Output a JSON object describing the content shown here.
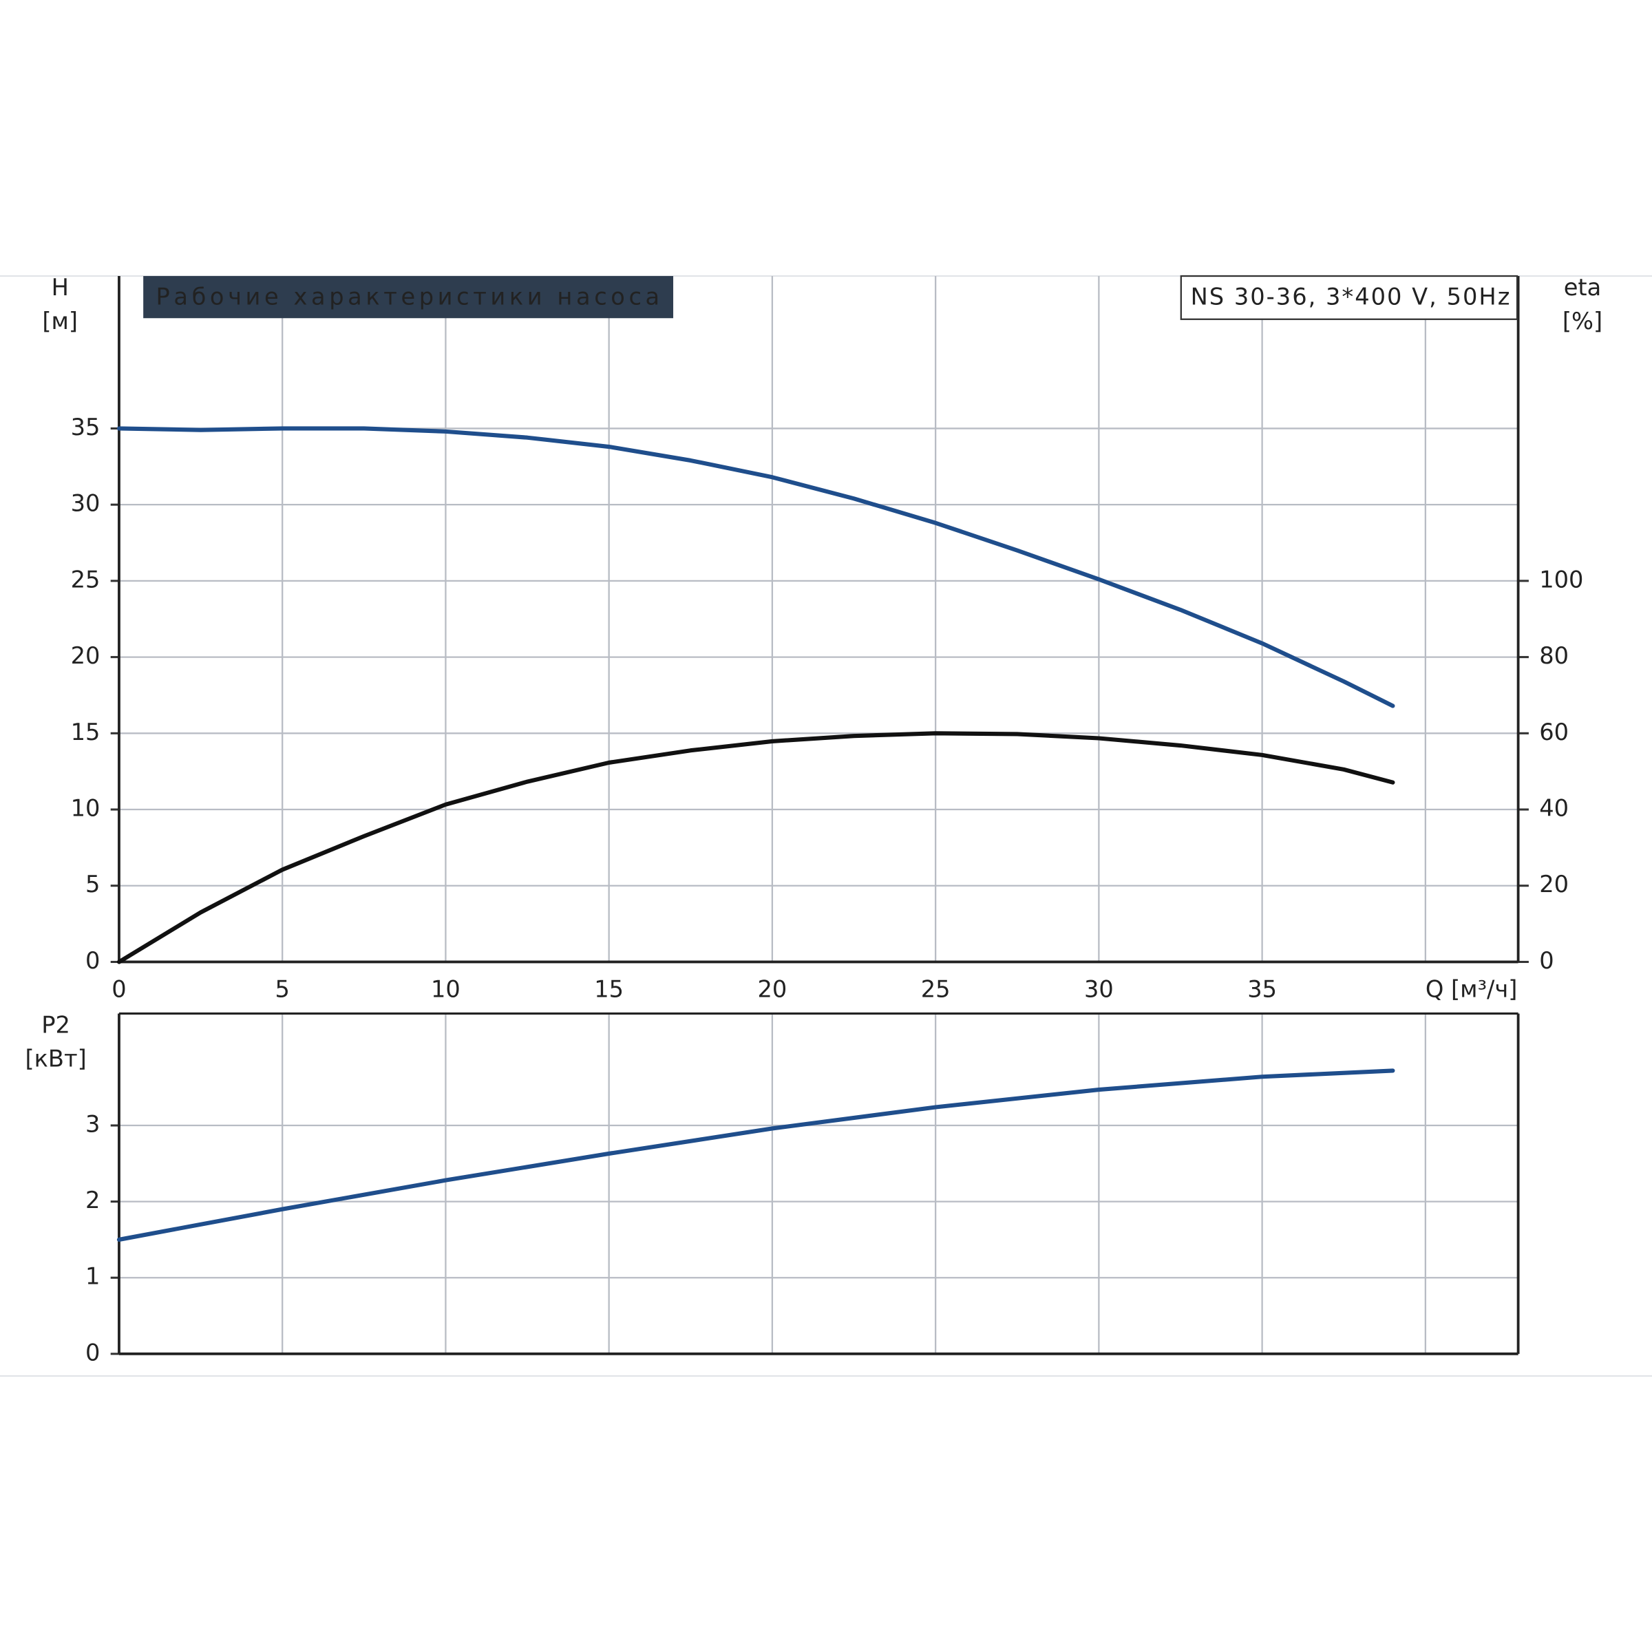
{
  "chart_data": [
    {
      "type": "line",
      "title": "Рабочие характеристики насоса",
      "annotation": "NS 30-36, 3*400 V, 50Hz",
      "ylabel": [
        "H",
        "[м]"
      ],
      "y2label": [
        "eta",
        "[%]"
      ],
      "x": [
        0,
        2.5,
        5,
        7.5,
        10,
        12.5,
        15,
        17.5,
        20,
        22.5,
        25,
        27.5,
        30,
        32.5,
        35,
        37.5,
        39
      ],
      "series": [
        {
          "color": "#1f4e8c",
          "values": [
            35,
            34.9,
            35,
            35,
            34.8,
            34.4,
            33.8,
            32.9,
            31.8,
            30.4,
            28.8,
            27.0,
            25.1,
            23.1,
            20.9,
            18.4,
            16.8
          ]
        },
        {
          "color": "#111111",
          "axis": "y2",
          "values": [
            0,
            13,
            24.2,
            33,
            41.3,
            47.3,
            52.3,
            55.5,
            57.9,
            59.3,
            60,
            59.8,
            58.7,
            56.8,
            54.3,
            50.5,
            47.1
          ]
        }
      ],
      "xlim": [
        0,
        42.84
      ],
      "xticks": [
        0,
        5,
        10,
        15,
        20,
        25,
        30,
        35,
        {
          "value": 40,
          "label": "Q [м³/ч]"
        }
      ],
      "ylim": [
        0,
        45
      ],
      "yticks": [
        0,
        5,
        10,
        15,
        20,
        25,
        30,
        35
      ],
      "y2lim": [
        0,
        180
      ],
      "y2ticks": [
        0,
        20,
        40,
        60,
        80,
        100
      ],
      "grid": true
    },
    {
      "type": "line",
      "ylabel": [
        "P2",
        "[кВт]"
      ],
      "x": [
        0,
        5,
        10,
        15,
        20,
        25,
        30,
        35,
        39
      ],
      "series": [
        {
          "color": "#1f4e8c",
          "values": [
            1.5,
            1.9,
            2.28,
            2.63,
            2.96,
            3.24,
            3.47,
            3.64,
            3.72
          ]
        }
      ],
      "xlim": [
        0,
        42.84
      ],
      "ylim": [
        0,
        4.47
      ],
      "yticks": [
        0,
        1,
        2,
        3
      ],
      "grid": true
    }
  ]
}
